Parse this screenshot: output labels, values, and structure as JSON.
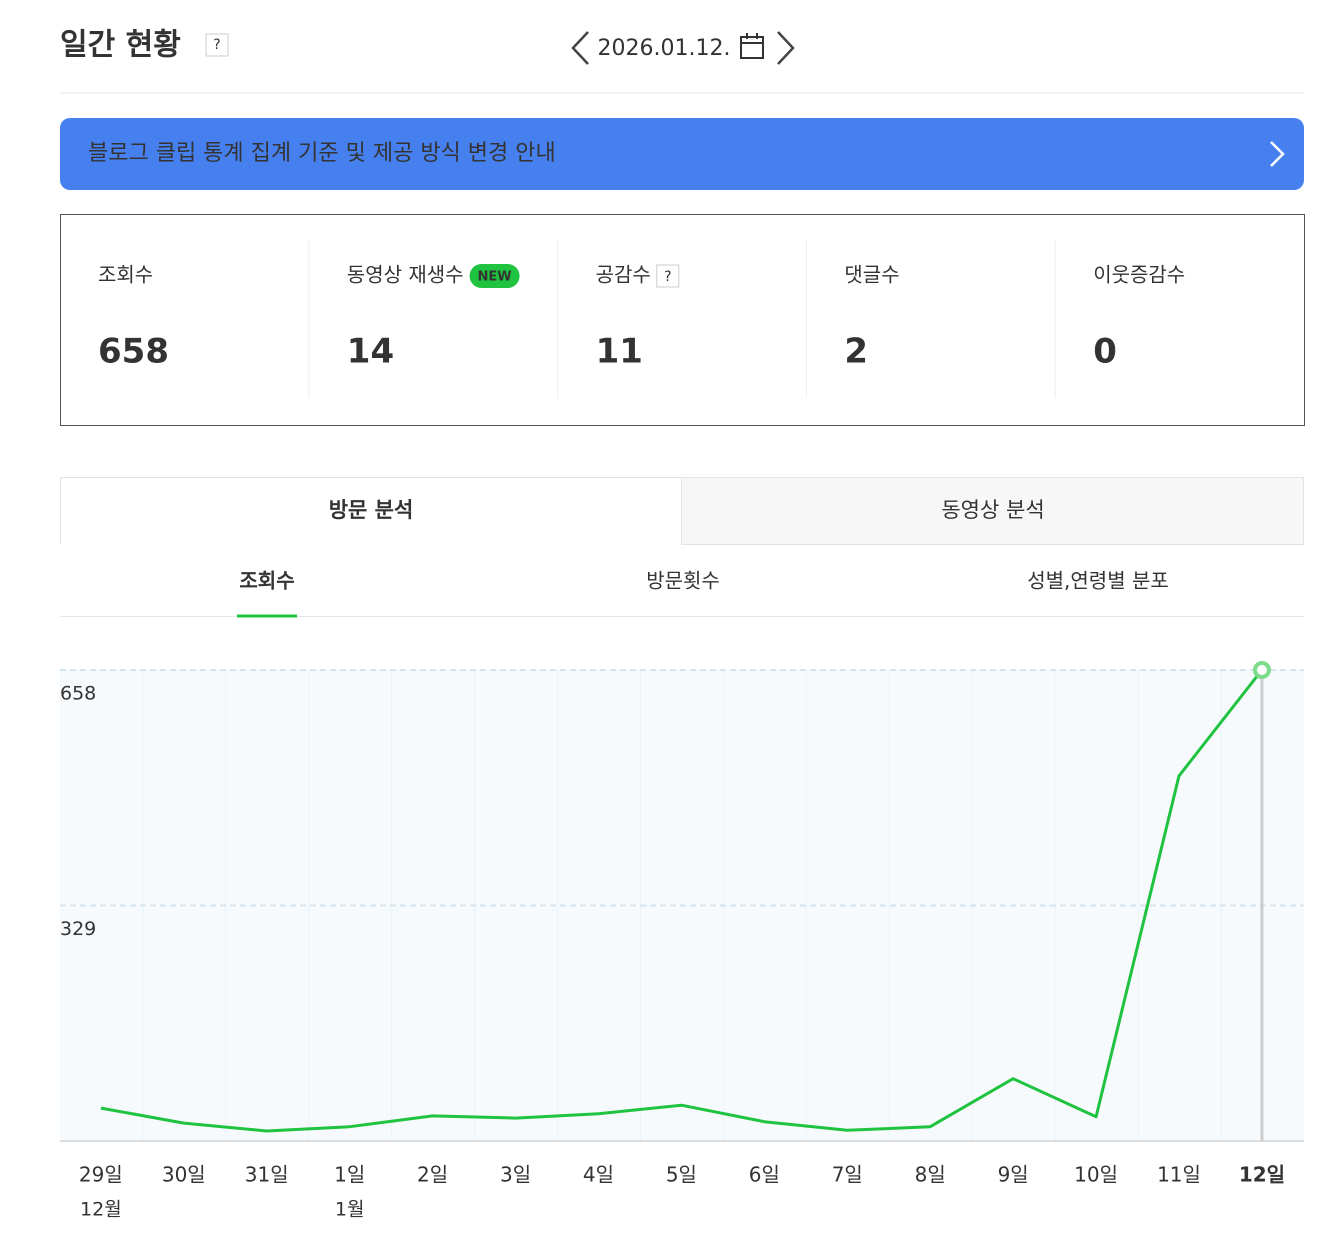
{
  "header": {
    "title": "일간 현황",
    "help": "?",
    "date": "2026.01.12."
  },
  "notice": "블로그 클립 통계 집계 기준 및 제공 방식 변경 안내",
  "stats": [
    {
      "label": "조회수",
      "value": 658
    },
    {
      "label": "동영상 재생수",
      "badge": "NEW",
      "value": 14
    },
    {
      "label": "공감수",
      "help": "?",
      "value": 11
    },
    {
      "label": "댓글수",
      "value": 2
    },
    {
      "label": "이웃증감수",
      "value": 0
    }
  ],
  "tabs": [
    "방문 분석",
    "동영상 분석"
  ],
  "subtabs": [
    "조회수",
    "방문횟수",
    "성별,연령별 분포"
  ],
  "chart_data": {
    "type": "line",
    "categories": [
      "29일",
      "30일",
      "31일",
      "1일",
      "2일",
      "3일",
      "4일",
      "5일",
      "6일",
      "7일",
      "8일",
      "9일",
      "10일",
      "11일",
      "12일"
    ],
    "month_labels": [
      "12월",
      null,
      null,
      "1월",
      null,
      null,
      null,
      null,
      null,
      null,
      null,
      null,
      null,
      null,
      null
    ],
    "values": [
      46,
      25,
      14,
      20,
      35,
      32,
      38,
      50,
      27,
      15,
      20,
      87,
      34,
      510,
      658
    ],
    "color": "#1fc33f",
    "ylim": [
      0,
      658
    ],
    "yticks": [
      329,
      658
    ],
    "grid": true
  }
}
